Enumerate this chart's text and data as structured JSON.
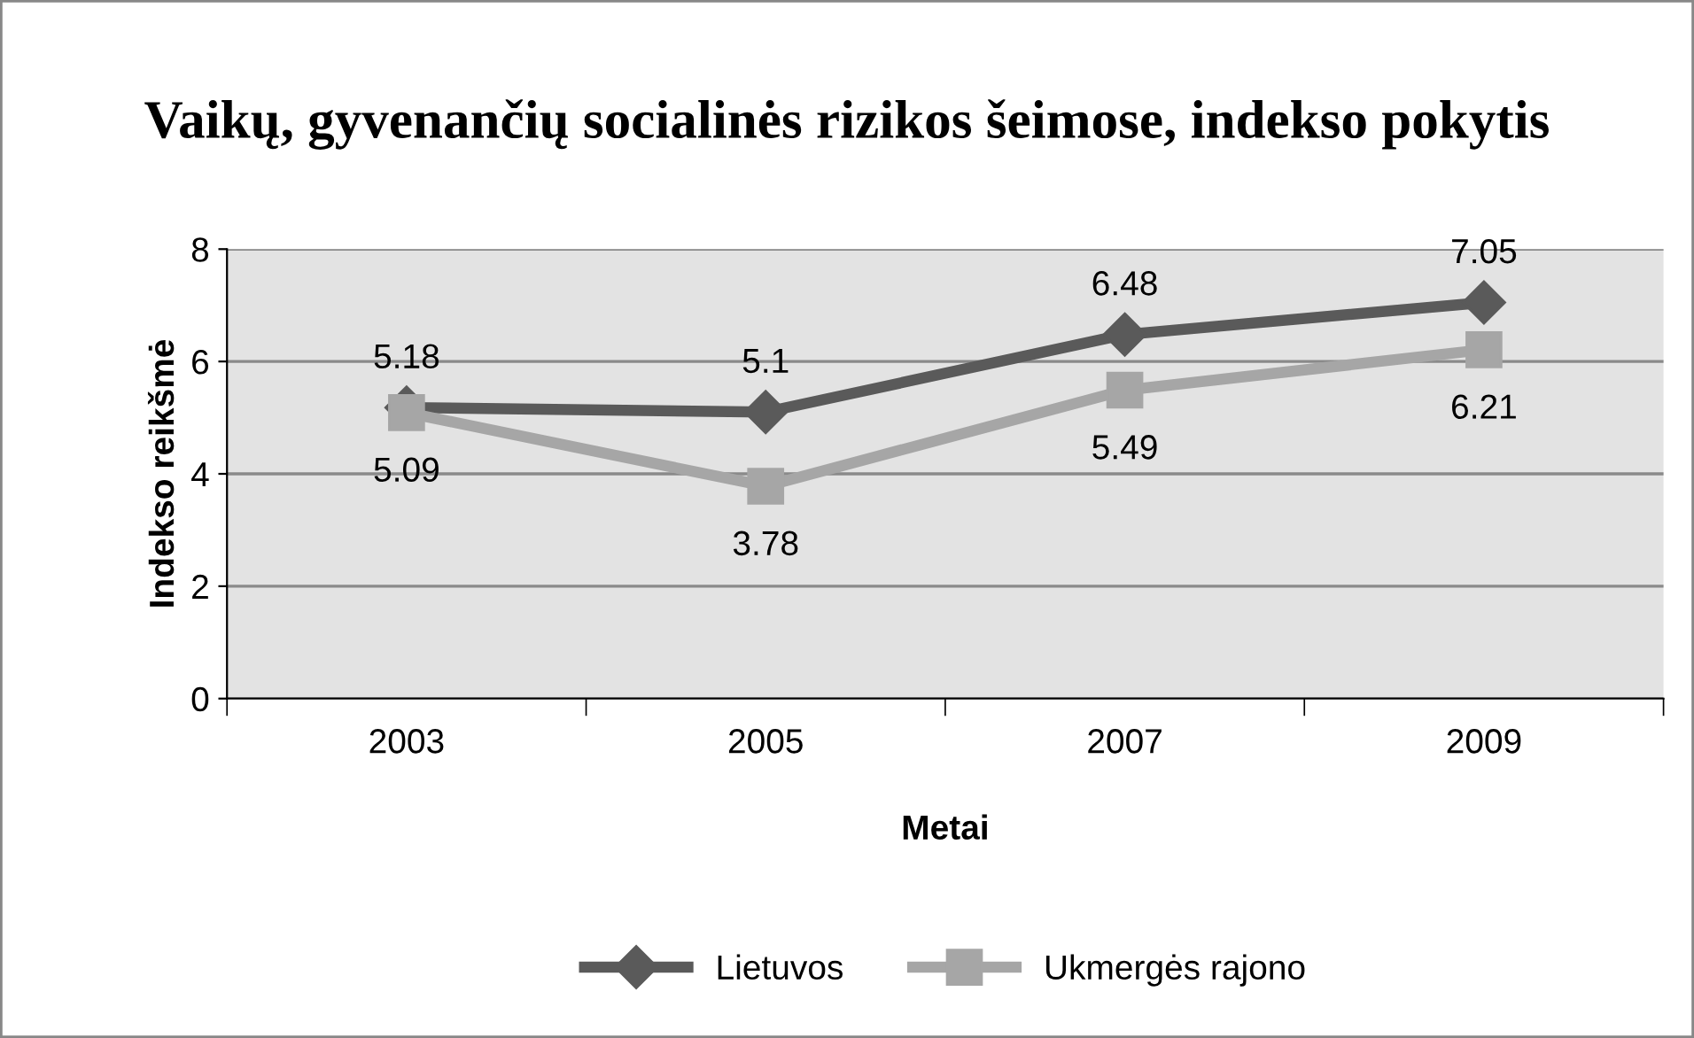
{
  "chart_data": {
    "type": "line",
    "title": "Vaikų, gyvenančių socialinės rizikos šeimose, indekso pokytis",
    "xlabel": "Metai",
    "ylabel": "Indekso reikšmė",
    "categories": [
      "2003",
      "2005",
      "2007",
      "2009"
    ],
    "series": [
      {
        "name": "Lietuvos",
        "color": "#5a5a5a",
        "marker": "diamond",
        "values": [
          5.18,
          5.1,
          6.48,
          7.05
        ]
      },
      {
        "name": "Ukmergės rajono",
        "color": "#a6a6a6",
        "marker": "square",
        "values": [
          5.09,
          3.78,
          5.49,
          6.21
        ]
      }
    ],
    "ylim": [
      0,
      8
    ],
    "yticks": [
      0,
      2,
      4,
      6,
      8
    ],
    "grid": "y",
    "legend": "bottom",
    "data_labels": true
  }
}
